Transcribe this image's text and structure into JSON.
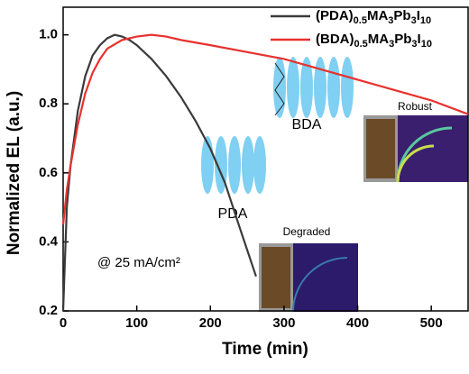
{
  "chart_data": {
    "type": "line",
    "x_label": "Time (min)",
    "y_label": "Normalized EL (a.u.)",
    "xlim": [
      0,
      550
    ],
    "ylim": [
      0.2,
      1.08
    ],
    "xticks": [
      0,
      100,
      200,
      300,
      400,
      500
    ],
    "yticks": [
      0.2,
      0.4,
      0.6,
      0.8,
      {
        "value": 1,
        "label": "1.0"
      }
    ],
    "legend": "top-right",
    "series": [
      {
        "name": "(PDA)0.5MA3Pb3I10",
        "color": "#3a3a3a",
        "x": [
          0,
          5,
          10,
          20,
          30,
          40,
          50,
          60,
          70,
          80,
          90,
          100,
          120,
          140,
          160,
          180,
          200,
          220,
          240,
          262
        ],
        "values": [
          0.2,
          0.5,
          0.62,
          0.78,
          0.88,
          0.94,
          0.97,
          0.99,
          1.0,
          0.995,
          0.985,
          0.97,
          0.93,
          0.88,
          0.82,
          0.75,
          0.67,
          0.57,
          0.44,
          0.3
        ]
      },
      {
        "name": "(BDA)0.5MA3Pb3I10",
        "color": "#e8312f",
        "x": [
          0,
          5,
          10,
          20,
          30,
          40,
          50,
          60,
          80,
          100,
          120,
          140,
          160,
          200,
          250,
          300,
          350,
          400,
          450,
          500,
          550
        ],
        "values": [
          0.45,
          0.55,
          0.62,
          0.74,
          0.83,
          0.89,
          0.93,
          0.96,
          0.985,
          0.995,
          1.0,
          0.995,
          0.985,
          0.97,
          0.95,
          0.93,
          0.9,
          0.87,
          0.84,
          0.81,
          0.77
        ]
      }
    ],
    "annotations": {
      "condition": "@ 25 mA/cm²",
      "pda": "PDA",
      "bda": "BDA",
      "degraded": "Degraded",
      "robust": "Robust"
    }
  }
}
